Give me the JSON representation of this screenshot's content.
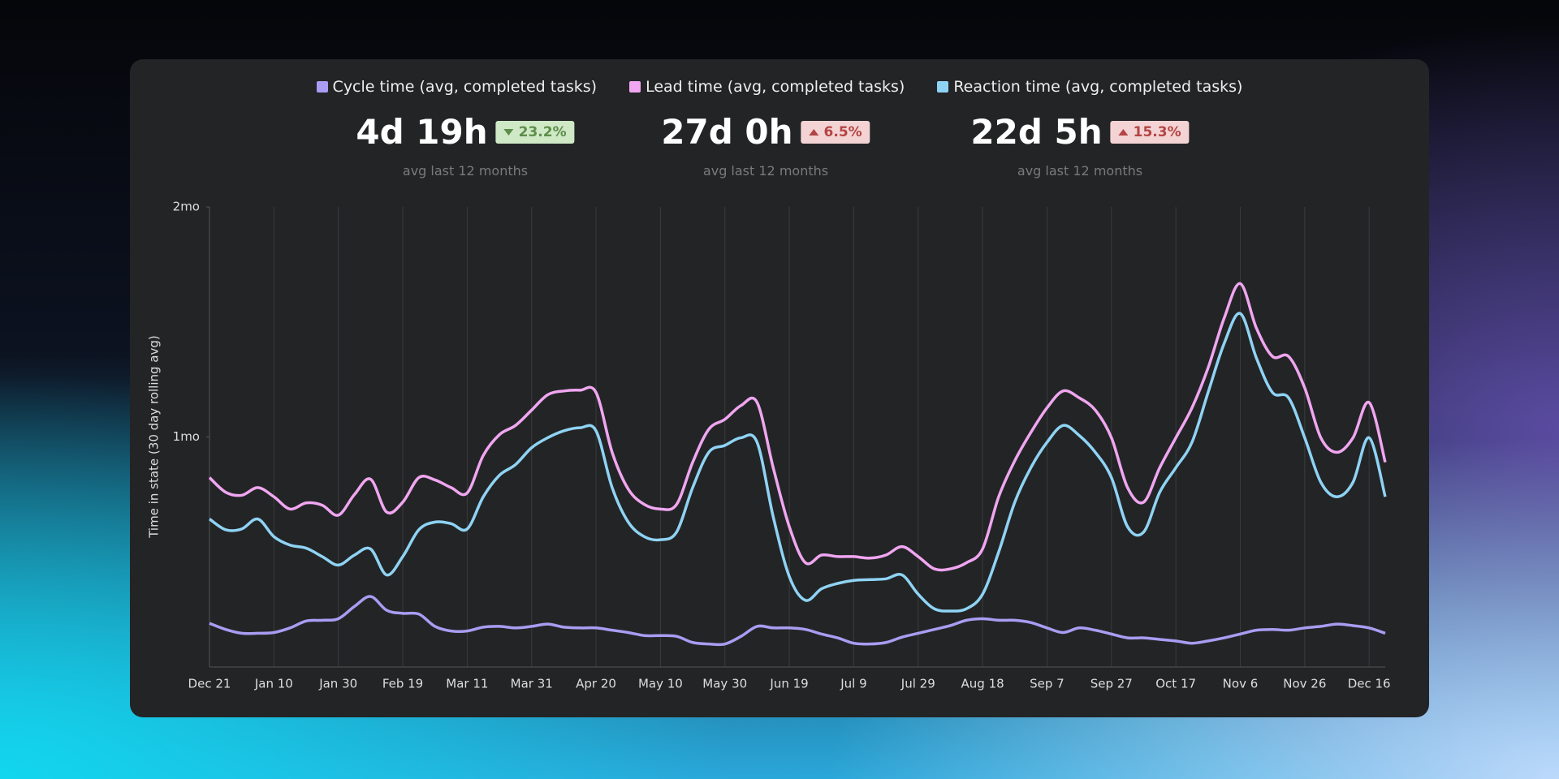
{
  "chart_data": {
    "type": "line",
    "y_label": "Time in state (30 day rolling avg)",
    "categories": [
      "Dec 21",
      null,
      null,
      null,
      "Jan 10",
      null,
      null,
      null,
      "Jan 30",
      null,
      null,
      null,
      "Feb 19",
      null,
      null,
      null,
      "Mar 11",
      null,
      null,
      null,
      "Mar 31",
      null,
      null,
      null,
      "Apr 20",
      null,
      null,
      null,
      "May 10",
      null,
      null,
      null,
      "May 30",
      null,
      null,
      null,
      "Jun 19",
      null,
      null,
      null,
      "Jul 9",
      null,
      null,
      null,
      "Jul 29",
      null,
      null,
      null,
      "Aug 18",
      null,
      null,
      null,
      "Sep 7",
      null,
      null,
      null,
      "Sep 27",
      null,
      null,
      null,
      "Oct 17",
      null,
      null,
      null,
      "Nov 6",
      null,
      null,
      null,
      "Nov 26",
      null,
      null,
      null,
      "Dec 16",
      null
    ],
    "ylim": [
      0,
      60
    ],
    "yticks": [
      {
        "value": 30,
        "label": "1mo"
      },
      {
        "value": 60,
        "label": "2mo"
      }
    ],
    "grid": true,
    "series": [
      {
        "name": "Cycle time (avg, completed tasks)",
        "color": "#a99cf2",
        "summary": {
          "value": "4d 19h",
          "change": "23.2%",
          "direction": "down",
          "note": "avg last 12 months"
        },
        "values": [
          5.7,
          4.9,
          4.4,
          4.4,
          4.5,
          5.1,
          6.0,
          6.1,
          6.3,
          7.9,
          9.2,
          7.4,
          7.0,
          6.9,
          5.3,
          4.7,
          4.7,
          5.2,
          5.3,
          5.1,
          5.3,
          5.6,
          5.2,
          5.1,
          5.1,
          4.8,
          4.5,
          4.1,
          4.1,
          4.0,
          3.2,
          3.0,
          3.0,
          4.0,
          5.3,
          5.1,
          5.1,
          4.9,
          4.3,
          3.8,
          3.1,
          3.0,
          3.2,
          3.9,
          4.4,
          4.9,
          5.4,
          6.1,
          6.3,
          6.1,
          6.1,
          5.8,
          5.1,
          4.5,
          5.1,
          4.8,
          4.3,
          3.8,
          3.8,
          3.6,
          3.4,
          3.1,
          3.4,
          3.8,
          4.3,
          4.8,
          4.9,
          4.8,
          5.1,
          5.3,
          5.6,
          5.4,
          5.1,
          4.4
        ]
      },
      {
        "name": "Lead time (avg, completed tasks)",
        "color": "#f0a6f0",
        "summary": {
          "value": "27d 0h",
          "change": "6.5%",
          "direction": "up",
          "note": "avg last 12 months"
        },
        "values": [
          24.7,
          22.8,
          22.4,
          23.4,
          22.2,
          20.6,
          21.4,
          21.1,
          19.8,
          22.5,
          24.5,
          20.2,
          21.5,
          24.7,
          24.4,
          23.4,
          22.7,
          27.6,
          30.3,
          31.5,
          33.5,
          35.5,
          36.0,
          36.1,
          35.8,
          28.0,
          23.2,
          21.2,
          20.6,
          21.2,
          26.7,
          31.0,
          32.3,
          34.1,
          34.5,
          26.0,
          18.3,
          13.6,
          14.6,
          14.4,
          14.4,
          14.2,
          14.6,
          15.7,
          14.4,
          12.8,
          12.8,
          13.6,
          15.4,
          22.2,
          26.9,
          30.6,
          33.8,
          36.0,
          35.1,
          33.5,
          29.9,
          23.4,
          21.5,
          26.0,
          29.9,
          33.8,
          39.0,
          45.5,
          50.0,
          44.2,
          40.5,
          40.5,
          36.4,
          29.9,
          28.0,
          29.9,
          34.5,
          26.7
        ]
      },
      {
        "name": "Reaction time (avg, completed tasks)",
        "color": "#8fd3f4",
        "summary": {
          "value": "22d 5h",
          "change": "15.3%",
          "direction": "up",
          "note": "avg last 12 months"
        },
        "values": [
          19.3,
          17.9,
          18.0,
          19.3,
          17.0,
          15.9,
          15.5,
          14.4,
          13.3,
          14.6,
          15.4,
          12.0,
          14.4,
          17.9,
          18.9,
          18.7,
          18.0,
          22.2,
          25.0,
          26.4,
          28.6,
          29.9,
          30.8,
          31.2,
          30.8,
          23.4,
          18.9,
          17.0,
          16.6,
          17.6,
          23.4,
          28.0,
          28.9,
          29.9,
          29.3,
          19.6,
          11.8,
          8.7,
          10.2,
          10.9,
          11.3,
          11.4,
          11.5,
          12.0,
          9.5,
          7.6,
          7.3,
          7.6,
          9.5,
          15.0,
          21.5,
          26.0,
          29.3,
          31.5,
          30.2,
          28.0,
          24.7,
          18.3,
          17.6,
          22.8,
          26.0,
          29.3,
          35.8,
          42.2,
          46.1,
          40.3,
          35.8,
          35.1,
          29.9,
          24.1,
          22.2,
          24.1,
          29.9,
          22.2
        ]
      }
    ]
  }
}
